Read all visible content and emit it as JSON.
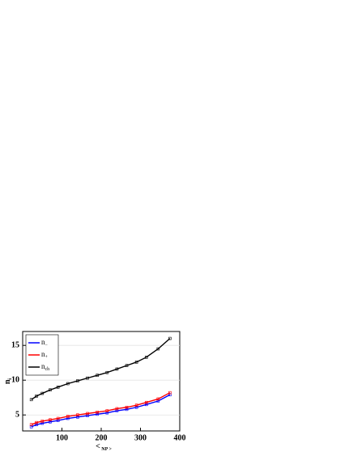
{
  "chart_data": {
    "type": "line",
    "x_label": "< NP >",
    "y_label": "ni",
    "x": [
      22,
      35,
      50,
      70,
      90,
      115,
      140,
      165,
      190,
      215,
      240,
      265,
      290,
      315,
      345,
      375
    ],
    "series": [
      {
        "name": "n−",
        "color": "#0000ff",
        "values": [
          3.3,
          3.6,
          3.8,
          4.0,
          4.2,
          4.5,
          4.7,
          4.9,
          5.1,
          5.3,
          5.6,
          5.8,
          6.1,
          6.5,
          7.0,
          7.9
        ]
      },
      {
        "name": "n+",
        "color": "#ff0000",
        "values": [
          3.6,
          3.9,
          4.1,
          4.3,
          4.5,
          4.8,
          5.0,
          5.2,
          5.4,
          5.6,
          5.9,
          6.1,
          6.4,
          6.8,
          7.3,
          8.2
        ]
      },
      {
        "name": "nch",
        "color": "#000000",
        "values": [
          7.2,
          7.7,
          8.1,
          8.6,
          9.0,
          9.5,
          9.9,
          10.3,
          10.7,
          11.1,
          11.6,
          12.1,
          12.6,
          13.3,
          14.5,
          16.0
        ]
      }
    ],
    "xlim": [
      0,
      400
    ],
    "ylim": [
      2.7,
      17
    ],
    "xticks": [
      100,
      200,
      300,
      400
    ],
    "yticks": [
      5,
      10,
      15
    ],
    "grid": true,
    "legend": "top-left"
  }
}
